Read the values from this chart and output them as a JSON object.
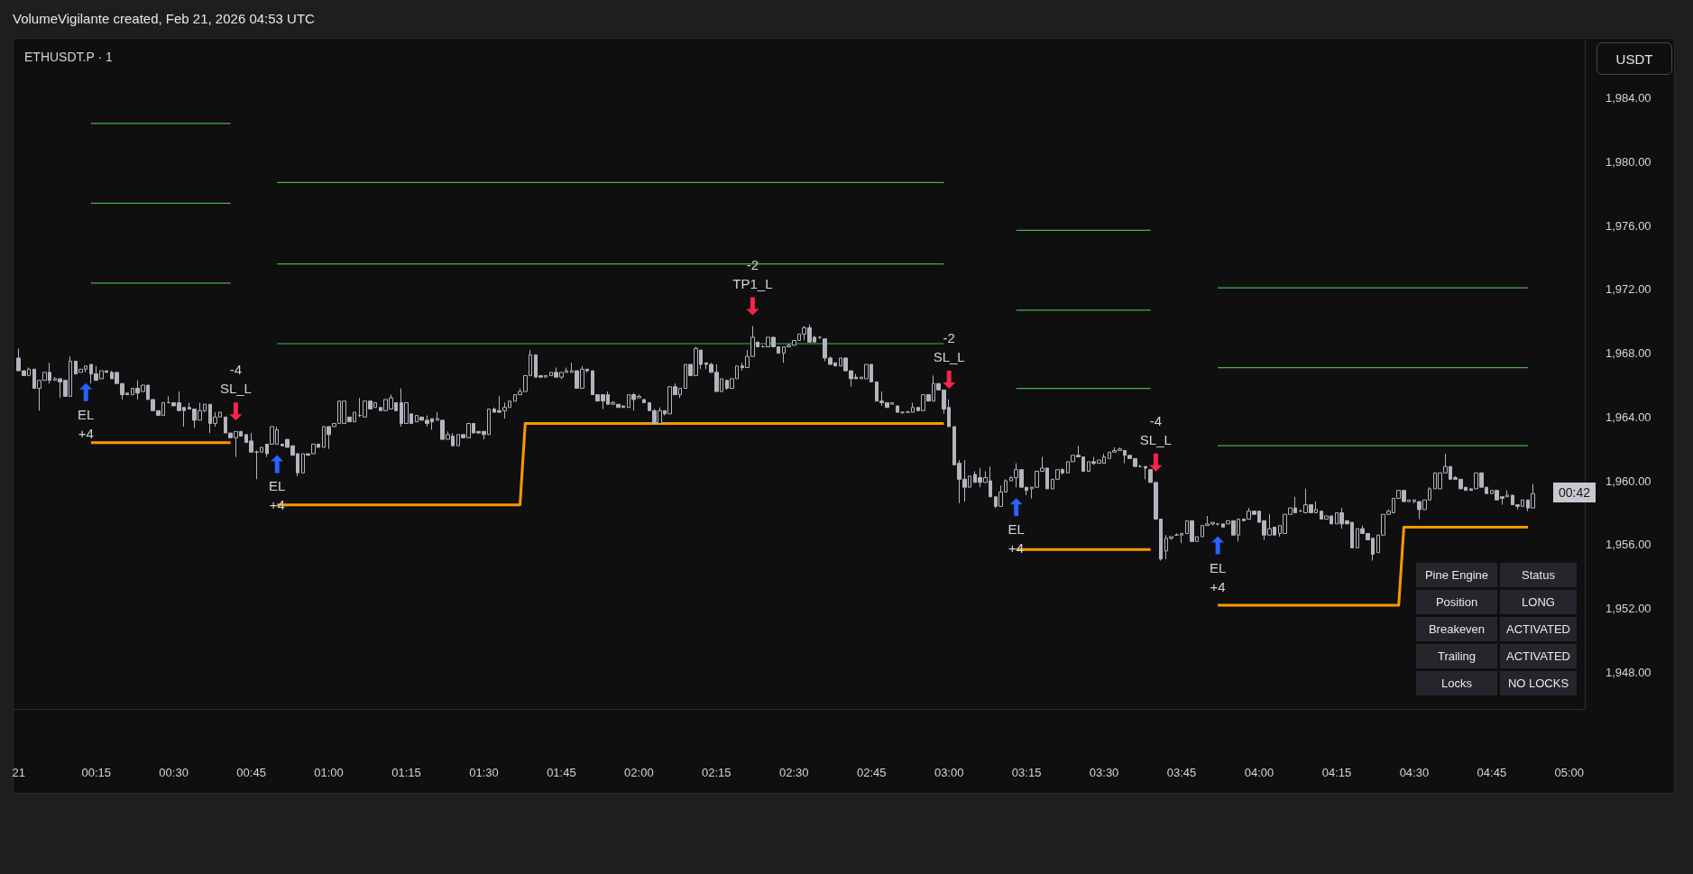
{
  "chart_data": {
    "type": "candlestick",
    "title": "VolumeVigilante created, Feb 21, 2026 04:53 UTC",
    "subtitle": "ETHUSDT.P · 1",
    "ylabel": "USDT",
    "color": "#b2b5be",
    "x": [
      "2026-02-21T00:00",
      "2026-02-21T00:01",
      "2026-02-21T00:02",
      "2026-02-21T00:03",
      "2026-02-21T00:04",
      "2026-02-21T00:05",
      "2026-02-21T00:06",
      "2026-02-21T00:07",
      "2026-02-21T00:08",
      "2026-02-21T00:09",
      "2026-02-21T00:10",
      "2026-02-21T00:11",
      "2026-02-21T00:12",
      "2026-02-21T00:13",
      "2026-02-21T00:14",
      "2026-02-21T00:15",
      "2026-02-21T00:16",
      "2026-02-21T00:17",
      "2026-02-21T00:18",
      "2026-02-21T00:19",
      "2026-02-21T00:20",
      "2026-02-21T00:21",
      "2026-02-21T00:22",
      "2026-02-21T00:23",
      "2026-02-21T00:24",
      "2026-02-21T00:25",
      "2026-02-21T00:26",
      "2026-02-21T00:27",
      "2026-02-21T00:28",
      "2026-02-21T00:29",
      "2026-02-21T00:30",
      "2026-02-21T00:31",
      "2026-02-21T00:32",
      "2026-02-21T00:33",
      "2026-02-21T00:34",
      "2026-02-21T00:35",
      "2026-02-21T00:36",
      "2026-02-21T00:37",
      "2026-02-21T00:38",
      "2026-02-21T00:39",
      "2026-02-21T00:40",
      "2026-02-21T00:41",
      "2026-02-21T00:42",
      "2026-02-21T00:43",
      "2026-02-21T00:44",
      "2026-02-21T00:45",
      "2026-02-21T00:46",
      "2026-02-21T00:47",
      "2026-02-21T00:48",
      "2026-02-21T00:49",
      "2026-02-21T00:50",
      "2026-02-21T00:51",
      "2026-02-21T00:52",
      "2026-02-21T00:53",
      "2026-02-21T00:54",
      "2026-02-21T00:55",
      "2026-02-21T00:56",
      "2026-02-21T00:57",
      "2026-02-21T00:58",
      "2026-02-21T00:59",
      "2026-02-21T01:00",
      "2026-02-21T01:01",
      "2026-02-21T01:02",
      "2026-02-21T01:03",
      "2026-02-21T01:04",
      "2026-02-21T01:05",
      "2026-02-21T01:06",
      "2026-02-21T01:07",
      "2026-02-21T01:08",
      "2026-02-21T01:09",
      "2026-02-21T01:10",
      "2026-02-21T01:11",
      "2026-02-21T01:12",
      "2026-02-21T01:13",
      "2026-02-21T01:14",
      "2026-02-21T01:15",
      "2026-02-21T01:16",
      "2026-02-21T01:17",
      "2026-02-21T01:18",
      "2026-02-21T01:19",
      "2026-02-21T01:20",
      "2026-02-21T01:21",
      "2026-02-21T01:22",
      "2026-02-21T01:23",
      "2026-02-21T01:24",
      "2026-02-21T01:25",
      "2026-02-21T01:26",
      "2026-02-21T01:27",
      "2026-02-21T01:28",
      "2026-02-21T01:29",
      "2026-02-21T01:30",
      "2026-02-21T01:31",
      "2026-02-21T01:32",
      "2026-02-21T01:33",
      "2026-02-21T01:34",
      "2026-02-21T01:35",
      "2026-02-21T01:36",
      "2026-02-21T01:37",
      "2026-02-21T01:38",
      "2026-02-21T01:39",
      "2026-02-21T01:40",
      "2026-02-21T01:41",
      "2026-02-21T01:42",
      "2026-02-21T01:43",
      "2026-02-21T01:44",
      "2026-02-21T01:45",
      "2026-02-21T01:46",
      "2026-02-21T01:47",
      "2026-02-21T01:48",
      "2026-02-21T01:49",
      "2026-02-21T01:50",
      "2026-02-21T01:51",
      "2026-02-21T01:52",
      "2026-02-21T01:53",
      "2026-02-21T01:54",
      "2026-02-21T01:55",
      "2026-02-21T01:56",
      "2026-02-21T01:57",
      "2026-02-21T01:58",
      "2026-02-21T01:59",
      "2026-02-21T02:00",
      "2026-02-21T02:01",
      "2026-02-21T02:02",
      "2026-02-21T02:03",
      "2026-02-21T02:04",
      "2026-02-21T02:05",
      "2026-02-21T02:06",
      "2026-02-21T02:07",
      "2026-02-21T02:08",
      "2026-02-21T02:09",
      "2026-02-21T02:10",
      "2026-02-21T02:11",
      "2026-02-21T02:12",
      "2026-02-21T02:13",
      "2026-02-21T02:14",
      "2026-02-21T02:15",
      "2026-02-21T02:16",
      "2026-02-21T02:17",
      "2026-02-21T02:18",
      "2026-02-21T02:19",
      "2026-02-21T02:20",
      "2026-02-21T02:21",
      "2026-02-21T02:22",
      "2026-02-21T02:23",
      "2026-02-21T02:24",
      "2026-02-21T02:25",
      "2026-02-21T02:26",
      "2026-02-21T02:27",
      "2026-02-21T02:28",
      "2026-02-21T02:29",
      "2026-02-21T02:30",
      "2026-02-21T02:31",
      "2026-02-21T02:32",
      "2026-02-21T02:33",
      "2026-02-21T02:34",
      "2026-02-21T02:35",
      "2026-02-21T02:36",
      "2026-02-21T02:37",
      "2026-02-21T02:38",
      "2026-02-21T02:39",
      "2026-02-21T02:40",
      "2026-02-21T02:41",
      "2026-02-21T02:42",
      "2026-02-21T02:43",
      "2026-02-21T02:44",
      "2026-02-21T02:45",
      "2026-02-21T02:46",
      "2026-02-21T02:47",
      "2026-02-21T02:48",
      "2026-02-21T02:49",
      "2026-02-21T02:50",
      "2026-02-21T02:51",
      "2026-02-21T02:52",
      "2026-02-21T02:53",
      "2026-02-21T02:54",
      "2026-02-21T02:55",
      "2026-02-21T02:56",
      "2026-02-21T02:57",
      "2026-02-21T02:58",
      "2026-02-21T02:59",
      "2026-02-21T03:00",
      "2026-02-21T03:01",
      "2026-02-21T03:02",
      "2026-02-21T03:03",
      "2026-02-21T03:04",
      "2026-02-21T03:05",
      "2026-02-21T03:06",
      "2026-02-21T03:07",
      "2026-02-21T03:08",
      "2026-02-21T03:09",
      "2026-02-21T03:10",
      "2026-02-21T03:11",
      "2026-02-21T03:12",
      "2026-02-21T03:13",
      "2026-02-21T03:14",
      "2026-02-21T03:15",
      "2026-02-21T03:16",
      "2026-02-21T03:17",
      "2026-02-21T03:18",
      "2026-02-21T03:19",
      "2026-02-21T03:20",
      "2026-02-21T03:21",
      "2026-02-21T03:22",
      "2026-02-21T03:23",
      "2026-02-21T03:24",
      "2026-02-21T03:25",
      "2026-02-21T03:26",
      "2026-02-21T03:27",
      "2026-02-21T03:28",
      "2026-02-21T03:29",
      "2026-02-21T03:30",
      "2026-02-21T03:31",
      "2026-02-21T03:32",
      "2026-02-21T03:33",
      "2026-02-21T03:34",
      "2026-02-21T03:35",
      "2026-02-21T03:36",
      "2026-02-21T03:37",
      "2026-02-21T03:38",
      "2026-02-21T03:39",
      "2026-02-21T03:40",
      "2026-02-21T03:41",
      "2026-02-21T03:42",
      "2026-02-21T03:43",
      "2026-02-21T03:44",
      "2026-02-21T03:45",
      "2026-02-21T03:46",
      "2026-02-21T03:47",
      "2026-02-21T03:48",
      "2026-02-21T03:49",
      "2026-02-21T03:50",
      "2026-02-21T03:51",
      "2026-02-21T03:52",
      "2026-02-21T03:53",
      "2026-02-21T03:54",
      "2026-02-21T03:55",
      "2026-02-21T03:56",
      "2026-02-21T03:57",
      "2026-02-21T03:58",
      "2026-02-21T03:59",
      "2026-02-21T04:00",
      "2026-02-21T04:01",
      "2026-02-21T04:02",
      "2026-02-21T04:03",
      "2026-02-21T04:04",
      "2026-02-21T04:05",
      "2026-02-21T04:06",
      "2026-02-21T04:07",
      "2026-02-21T04:08",
      "2026-02-21T04:09",
      "2026-02-21T04:10",
      "2026-02-21T04:11",
      "2026-02-21T04:12",
      "2026-02-21T04:13",
      "2026-02-21T04:14",
      "2026-02-21T04:15",
      "2026-02-21T04:16",
      "2026-02-21T04:17",
      "2026-02-21T04:18",
      "2026-02-21T04:19",
      "2026-02-21T04:20",
      "2026-02-21T04:21",
      "2026-02-21T04:22",
      "2026-02-21T04:23",
      "2026-02-21T04:24",
      "2026-02-21T04:25",
      "2026-02-21T04:26",
      "2026-02-21T04:27",
      "2026-02-21T04:28",
      "2026-02-21T04:29",
      "2026-02-21T04:30",
      "2026-02-21T04:31",
      "2026-02-21T04:32",
      "2026-02-21T04:33",
      "2026-02-21T04:34",
      "2026-02-21T04:35",
      "2026-02-21T04:36",
      "2026-02-21T04:37",
      "2026-02-21T04:38",
      "2026-02-21T04:39",
      "2026-02-21T04:40",
      "2026-02-21T04:41",
      "2026-02-21T04:42",
      "2026-02-21T04:43",
      "2026-02-21T04:44",
      "2026-02-21T04:45",
      "2026-02-21T04:46",
      "2026-02-21T04:47",
      "2026-02-21T04:48",
      "2026-02-21T04:49",
      "2026-02-21T04:50",
      "2026-02-21T04:51",
      "2026-02-21T04:52",
      "2026-02-21T04:53"
    ],
    "ohlc": [
      [
        1967.7,
        1968.3,
        1966.9,
        1966.9
      ],
      [
        1966.9,
        1966.9,
        1966.6,
        1966.6
      ],
      [
        1966.6,
        1967.1,
        1966.6,
        1967.0
      ],
      [
        1967.0,
        1967.0,
        1965.8,
        1965.8
      ],
      [
        1965.8,
        1966.3,
        1964.4,
        1966.3
      ],
      [
        1966.3,
        1966.8,
        1966.3,
        1966.8
      ],
      [
        1966.8,
        1967.4,
        1966.1,
        1966.3
      ],
      [
        1966.3,
        1966.5,
        1966.3,
        1966.4
      ],
      [
        1966.4,
        1966.4,
        1965.2,
        1966.2
      ],
      [
        1966.3,
        1966.3,
        1965.3,
        1965.3
      ],
      [
        1965.3,
        1967.8,
        1965.3,
        1967.5
      ],
      [
        1967.5,
        1967.5,
        1966.7,
        1966.7
      ],
      [
        1966.8,
        1967.0,
        1966.8,
        1967.0
      ],
      [
        1967.0,
        1967.2,
        1966.8,
        1967.2
      ],
      [
        1967.3,
        1967.3,
        1966.1,
        1966.7
      ],
      [
        1966.7,
        1967.2,
        1966.3,
        1966.3
      ],
      [
        1966.4,
        1966.9,
        1966.4,
        1966.9
      ],
      [
        1966.9,
        1966.9,
        1966.8,
        1966.8
      ],
      [
        1966.8,
        1966.9,
        1966.4,
        1966.4
      ],
      [
        1966.8,
        1966.8,
        1966.1,
        1966.1
      ],
      [
        1966.1,
        1966.1,
        1965.1,
        1965.4
      ],
      [
        1965.5,
        1965.5,
        1965.4,
        1965.4
      ],
      [
        1965.4,
        1965.8,
        1965.4,
        1965.8
      ],
      [
        1965.8,
        1966.3,
        1965.1,
        1965.5
      ],
      [
        1965.6,
        1966.0,
        1965.6,
        1966.0
      ],
      [
        1966.0,
        1966.0,
        1965.1,
        1965.1
      ],
      [
        1965.1,
        1965.1,
        1964.4,
        1964.4
      ],
      [
        1964.4,
        1964.4,
        1964.1,
        1964.1
      ],
      [
        1964.1,
        1964.9,
        1964.1,
        1964.9
      ],
      [
        1964.9,
        1965.3,
        1964.9,
        1964.9
      ],
      [
        1964.9,
        1964.9,
        1964.7,
        1964.7
      ],
      [
        1964.9,
        1965.6,
        1964.4,
        1964.4
      ],
      [
        1964.6,
        1964.6,
        1963.4,
        1964.4
      ],
      [
        1964.6,
        1964.9,
        1964.5,
        1964.5
      ],
      [
        1964.5,
        1964.5,
        1963.3,
        1963.8
      ],
      [
        1963.8,
        1964.9,
        1963.8,
        1964.4
      ],
      [
        1964.4,
        1964.8,
        1964.3,
        1964.8
      ],
      [
        1964.8,
        1964.8,
        1963.0,
        1963.6
      ],
      [
        1963.6,
        1964.3,
        1963.4,
        1964.0
      ],
      [
        1964.0,
        1964.3,
        1964.0,
        1964.3
      ],
      [
        1964.0,
        1964.0,
        1963.0,
        1963.0
      ],
      [
        1963.0,
        1963.0,
        1962.7,
        1962.7
      ],
      [
        1962.7,
        1963.1,
        1961.5,
        1963.1
      ],
      [
        1963.1,
        1963.1,
        1962.8,
        1962.8
      ],
      [
        1962.9,
        1962.9,
        1962.4,
        1962.4
      ],
      [
        1962.5,
        1963.0,
        1961.8,
        1961.8
      ],
      [
        1961.8,
        1961.9,
        1960.1,
        1961.8
      ],
      [
        1961.8,
        1962.1,
        1961.8,
        1962.1
      ],
      [
        1962.3,
        1962.3,
        1961.5,
        1961.7
      ],
      [
        1962.3,
        1963.4,
        1962.3,
        1963.4
      ],
      [
        1962.3,
        1963.4,
        1962.3,
        1963.2
      ],
      [
        1962.3,
        1962.3,
        1962.2,
        1962.2
      ],
      [
        1962.6,
        1962.6,
        1962.1,
        1962.1
      ],
      [
        1962.2,
        1962.2,
        1961.6,
        1961.6
      ],
      [
        1961.7,
        1961.7,
        1960.3,
        1960.5
      ],
      [
        1960.5,
        1961.7,
        1960.5,
        1961.7
      ],
      [
        1961.7,
        1961.7,
        1961.6,
        1961.6
      ],
      [
        1961.7,
        1962.3,
        1961.7,
        1962.3
      ],
      [
        1962.3,
        1962.3,
        1962.1,
        1962.1
      ],
      [
        1962.1,
        1963.4,
        1962.1,
        1963.4
      ],
      [
        1963.4,
        1963.4,
        1962.0,
        1962.9
      ],
      [
        1963.4,
        1963.6,
        1963.4,
        1963.6
      ],
      [
        1963.6,
        1965.0,
        1963.6,
        1965.0
      ],
      [
        1963.6,
        1965.0,
        1963.6,
        1965.0
      ],
      [
        1964.0,
        1964.0,
        1963.7,
        1963.7
      ],
      [
        1963.7,
        1964.3,
        1963.7,
        1964.3
      ],
      [
        1964.1,
        1965.2,
        1964.0,
        1964.1
      ],
      [
        1964.0,
        1965.0,
        1964.0,
        1965.0
      ],
      [
        1965.0,
        1965.0,
        1964.5,
        1964.5
      ],
      [
        1964.6,
        1964.9,
        1964.6,
        1964.9
      ],
      [
        1964.6,
        1964.6,
        1964.4,
        1964.4
      ],
      [
        1964.4,
        1965.1,
        1964.4,
        1965.1
      ],
      [
        1964.5,
        1965.4,
        1964.5,
        1965.2
      ],
      [
        1964.9,
        1964.9,
        1964.4,
        1964.4
      ],
      [
        1964.9,
        1965.8,
        1963.4,
        1963.6
      ],
      [
        1963.6,
        1964.9,
        1963.6,
        1964.9
      ],
      [
        1964.2,
        1964.2,
        1963.6,
        1963.6
      ],
      [
        1963.7,
        1964.1,
        1963.7,
        1964.1
      ],
      [
        1964.0,
        1964.0,
        1963.8,
        1963.8
      ],
      [
        1963.8,
        1964.1,
        1963.4,
        1963.6
      ],
      [
        1963.9,
        1963.9,
        1963.2,
        1963.7
      ],
      [
        1963.8,
        1964.3,
        1963.8,
        1963.9
      ],
      [
        1963.8,
        1963.8,
        1962.6,
        1962.6
      ],
      [
        1962.6,
        1963.1,
        1962.6,
        1962.9
      ],
      [
        1962.8,
        1963.0,
        1962.2,
        1962.2
      ],
      [
        1962.2,
        1962.9,
        1962.2,
        1962.9
      ],
      [
        1962.9,
        1962.9,
        1962.7,
        1962.7
      ],
      [
        1962.7,
        1963.6,
        1962.7,
        1963.6
      ],
      [
        1963.6,
        1963.6,
        1963.0,
        1963.0
      ],
      [
        1963.1,
        1963.1,
        1963.0,
        1963.0
      ],
      [
        1963.1,
        1963.1,
        1962.6,
        1962.9
      ],
      [
        1962.9,
        1964.5,
        1962.9,
        1964.5
      ],
      [
        1964.5,
        1964.6,
        1964.3,
        1964.3
      ],
      [
        1964.4,
        1965.3,
        1964.3,
        1964.3
      ],
      [
        1964.4,
        1964.9,
        1963.9,
        1964.6
      ],
      [
        1964.6,
        1965.0,
        1964.6,
        1965.0
      ],
      [
        1965.0,
        1965.4,
        1965.0,
        1965.4
      ],
      [
        1965.4,
        1965.8,
        1965.4,
        1965.6
      ],
      [
        1965.6,
        1966.6,
        1965.6,
        1966.6
      ],
      [
        1966.6,
        1968.2,
        1966.6,
        1967.9
      ],
      [
        1967.9,
        1967.9,
        1966.5,
        1966.5
      ],
      [
        1966.6,
        1966.6,
        1966.5,
        1966.5
      ],
      [
        1966.5,
        1966.6,
        1966.5,
        1966.6
      ],
      [
        1966.6,
        1966.8,
        1966.6,
        1966.8
      ],
      [
        1966.8,
        1967.1,
        1966.5,
        1966.5
      ],
      [
        1966.5,
        1966.8,
        1966.4,
        1966.8
      ],
      [
        1966.8,
        1967.1,
        1966.8,
        1966.9
      ],
      [
        1966.8,
        1967.4,
        1966.8,
        1966.9
      ],
      [
        1966.9,
        1966.9,
        1965.8,
        1965.8
      ],
      [
        1965.8,
        1967.2,
        1965.8,
        1967.0
      ],
      [
        1967.0,
        1967.0,
        1966.8,
        1966.9
      ],
      [
        1966.9,
        1966.9,
        1965.4,
        1965.4
      ],
      [
        1965.4,
        1965.4,
        1965.0,
        1965.0
      ],
      [
        1965.4,
        1965.4,
        1964.5,
        1965.0
      ],
      [
        1965.4,
        1965.6,
        1964.8,
        1964.8
      ],
      [
        1964.8,
        1965.0,
        1964.8,
        1964.9
      ],
      [
        1964.8,
        1964.8,
        1964.6,
        1964.6
      ],
      [
        1964.7,
        1964.7,
        1964.6,
        1964.6
      ],
      [
        1964.6,
        1965.4,
        1964.6,
        1965.4
      ],
      [
        1965.4,
        1965.5,
        1964.4,
        1965.1
      ],
      [
        1965.2,
        1965.4,
        1965.2,
        1965.3
      ],
      [
        1965.1,
        1965.1,
        1964.9,
        1964.9
      ],
      [
        1964.9,
        1964.9,
        1964.4,
        1964.4
      ],
      [
        1964.4,
        1964.5,
        1963.6,
        1963.6
      ],
      [
        1963.6,
        1964.6,
        1963.6,
        1964.4
      ],
      [
        1964.4,
        1964.4,
        1964.1,
        1964.2
      ],
      [
        1964.2,
        1965.9,
        1964.2,
        1965.9
      ],
      [
        1965.9,
        1966.1,
        1965.4,
        1965.4
      ],
      [
        1965.4,
        1965.8,
        1965.2,
        1965.8
      ],
      [
        1965.8,
        1967.3,
        1965.8,
        1967.3
      ],
      [
        1967.3,
        1967.3,
        1966.6,
        1966.6
      ],
      [
        1966.6,
        1968.4,
        1966.6,
        1968.3
      ],
      [
        1968.2,
        1968.2,
        1967.0,
        1967.3
      ],
      [
        1967.4,
        1967.4,
        1967.0,
        1967.3
      ],
      [
        1967.3,
        1967.4,
        1966.8,
        1966.8
      ],
      [
        1966.8,
        1967.3,
        1965.6,
        1965.6
      ],
      [
        1965.6,
        1966.4,
        1965.6,
        1966.4
      ],
      [
        1966.3,
        1966.3,
        1965.7,
        1965.8
      ],
      [
        1965.8,
        1966.4,
        1965.8,
        1966.4
      ],
      [
        1966.4,
        1967.2,
        1966.4,
        1967.2
      ],
      [
        1967.2,
        1967.4,
        1966.9,
        1967.1
      ],
      [
        1967.1,
        1968.2,
        1967.1,
        1967.8
      ],
      [
        1967.8,
        1969.7,
        1967.8,
        1969.0
      ],
      [
        1968.7,
        1968.7,
        1968.4,
        1968.4
      ],
      [
        1968.4,
        1968.5,
        1968.4,
        1968.4
      ],
      [
        1968.4,
        1969.0,
        1968.4,
        1969.0
      ],
      [
        1969.0,
        1969.0,
        1968.4,
        1968.4
      ],
      [
        1968.4,
        1968.4,
        1968.0,
        1968.0
      ],
      [
        1968.0,
        1968.4,
        1967.4,
        1968.4
      ],
      [
        1968.4,
        1968.6,
        1968.4,
        1968.5
      ],
      [
        1968.5,
        1968.8,
        1968.5,
        1968.8
      ],
      [
        1968.8,
        1969.2,
        1968.8,
        1969.2
      ],
      [
        1969.2,
        1969.7,
        1968.8,
        1969.6
      ],
      [
        1969.6,
        1969.8,
        1968.7,
        1968.7
      ],
      [
        1969.0,
        1969.1,
        1968.7,
        1968.7
      ],
      [
        1969.0,
        1969.0,
        1968.9,
        1969.0
      ],
      [
        1968.9,
        1968.9,
        1967.5,
        1967.7
      ],
      [
        1967.7,
        1967.8,
        1967.3,
        1967.3
      ],
      [
        1967.4,
        1967.4,
        1967.2,
        1967.2
      ],
      [
        1967.2,
        1967.7,
        1967.2,
        1967.7
      ],
      [
        1967.7,
        1967.7,
        1966.9,
        1966.9
      ],
      [
        1966.9,
        1966.9,
        1965.9,
        1966.4
      ],
      [
        1966.5,
        1966.7,
        1966.4,
        1966.4
      ],
      [
        1966.4,
        1966.5,
        1966.4,
        1966.5
      ],
      [
        1966.4,
        1967.3,
        1966.4,
        1967.3
      ],
      [
        1967.3,
        1967.3,
        1966.2,
        1966.2
      ],
      [
        1966.2,
        1966.2,
        1965.0,
        1965.0
      ],
      [
        1965.0,
        1965.6,
        1964.7,
        1964.9
      ],
      [
        1964.9,
        1964.9,
        1964.6,
        1964.6
      ],
      [
        1964.8,
        1964.9,
        1964.8,
        1964.9
      ],
      [
        1964.7,
        1964.7,
        1964.3,
        1964.3
      ],
      [
        1964.3,
        1964.3,
        1964.2,
        1964.3
      ],
      [
        1964.3,
        1964.4,
        1964.3,
        1964.3
      ],
      [
        1964.3,
        1964.9,
        1964.3,
        1964.6
      ],
      [
        1964.6,
        1964.6,
        1964.4,
        1964.4
      ],
      [
        1964.4,
        1965.4,
        1964.4,
        1965.4
      ],
      [
        1965.4,
        1965.4,
        1965.0,
        1965.0
      ],
      [
        1965.0,
        1966.6,
        1965.0,
        1966.1
      ],
      [
        1966.1,
        1966.1,
        1965.7,
        1965.7
      ],
      [
        1965.7,
        1965.7,
        1964.2,
        1964.5
      ],
      [
        1964.6,
        1965.1,
        1963.4,
        1963.4
      ],
      [
        1963.4,
        1963.4,
        1961.0,
        1961.0
      ],
      [
        1961.1,
        1961.3,
        1958.6,
        1960.1
      ],
      [
        1960.1,
        1961.3,
        1958.7,
        1959.6
      ],
      [
        1959.6,
        1960.3,
        1959.6,
        1960.3
      ],
      [
        1960.4,
        1960.6,
        1959.9,
        1959.9
      ],
      [
        1960.2,
        1960.8,
        1959.6,
        1959.9
      ],
      [
        1959.9,
        1960.6,
        1959.9,
        1960.2
      ],
      [
        1960.0,
        1960.9,
        1959.0,
        1959.0
      ],
      [
        1959.0,
        1959.0,
        1958.3,
        1958.4
      ],
      [
        1958.4,
        1959.7,
        1958.4,
        1959.3
      ],
      [
        1959.3,
        1960.1,
        1959.3,
        1960.0
      ],
      [
        1960.0,
        1960.3,
        1960.0,
        1960.2
      ],
      [
        1960.2,
        1961.1,
        1959.6,
        1960.7
      ],
      [
        1960.7,
        1960.7,
        1959.6,
        1959.6
      ],
      [
        1959.6,
        1959.6,
        1959.1,
        1959.4
      ],
      [
        1959.5,
        1959.6,
        1958.9,
        1959.6
      ],
      [
        1959.6,
        1960.6,
        1959.6,
        1960.6
      ],
      [
        1960.6,
        1961.5,
        1960.6,
        1960.8
      ],
      [
        1960.8,
        1960.8,
        1959.5,
        1959.5
      ],
      [
        1959.5,
        1960.1,
        1959.5,
        1960.1
      ],
      [
        1960.1,
        1960.7,
        1960.1,
        1960.7
      ],
      [
        1960.7,
        1960.8,
        1960.4,
        1960.5
      ],
      [
        1960.5,
        1961.2,
        1960.5,
        1961.2
      ],
      [
        1961.2,
        1961.6,
        1961.2,
        1961.6
      ],
      [
        1961.6,
        1962.2,
        1961.5,
        1961.5
      ],
      [
        1961.5,
        1961.5,
        1960.6,
        1960.6
      ],
      [
        1960.6,
        1961.2,
        1960.6,
        1961.2
      ],
      [
        1961.2,
        1961.5,
        1961.0,
        1961.1
      ],
      [
        1961.1,
        1961.3,
        1961.1,
        1961.3
      ],
      [
        1961.1,
        1961.7,
        1961.1,
        1961.5
      ],
      [
        1961.4,
        1961.8,
        1961.4,
        1961.8
      ],
      [
        1961.8,
        1962.1,
        1961.8,
        1961.9
      ],
      [
        1961.9,
        1962.1,
        1961.9,
        1962.0
      ],
      [
        1961.9,
        1961.9,
        1961.1,
        1961.6
      ],
      [
        1961.6,
        1961.6,
        1961.4,
        1961.4
      ],
      [
        1961.4,
        1961.4,
        1960.9,
        1960.9
      ],
      [
        1960.9,
        1961.0,
        1960.9,
        1960.9
      ],
      [
        1960.9,
        1960.9,
        1960.1,
        1960.8
      ],
      [
        1960.7,
        1960.7,
        1959.9,
        1959.9
      ],
      [
        1959.9,
        1959.9,
        1957.6,
        1957.6
      ],
      [
        1957.6,
        1957.6,
        1955.0,
        1955.1
      ],
      [
        1955.6,
        1956.6,
        1955.1,
        1956.4
      ],
      [
        1956.4,
        1956.5,
        1956.3,
        1956.5
      ],
      [
        1956.6,
        1956.7,
        1956.6,
        1956.6
      ],
      [
        1956.6,
        1956.7,
        1956.1,
        1956.7
      ],
      [
        1956.7,
        1957.5,
        1956.7,
        1957.5
      ],
      [
        1957.5,
        1957.5,
        1956.2,
        1956.2
      ],
      [
        1956.2,
        1956.5,
        1956.2,
        1956.5
      ],
      [
        1956.5,
        1957.2,
        1956.5,
        1957.2
      ],
      [
        1957.2,
        1957.8,
        1957.2,
        1957.3
      ],
      [
        1957.3,
        1957.4,
        1957.2,
        1957.4
      ],
      [
        1957.3,
        1957.3,
        1957.2,
        1957.3
      ],
      [
        1957.3,
        1957.3,
        1957.1,
        1957.1
      ],
      [
        1957.3,
        1957.5,
        1957.3,
        1957.5
      ],
      [
        1957.5,
        1957.5,
        1956.6,
        1956.6
      ],
      [
        1956.6,
        1957.6,
        1956.2,
        1957.6
      ],
      [
        1957.6,
        1957.6,
        1957.5,
        1957.5
      ],
      [
        1957.6,
        1958.3,
        1957.6,
        1958.1
      ],
      [
        1958.1,
        1958.1,
        1957.9,
        1957.9
      ],
      [
        1958.1,
        1958.1,
        1957.4,
        1957.4
      ],
      [
        1957.5,
        1957.5,
        1956.3,
        1956.6
      ],
      [
        1956.6,
        1957.9,
        1956.6,
        1957.0
      ],
      [
        1957.1,
        1957.1,
        1956.6,
        1956.6
      ],
      [
        1956.7,
        1957.2,
        1956.5,
        1957.2
      ],
      [
        1956.7,
        1957.9,
        1956.7,
        1957.9
      ],
      [
        1957.9,
        1958.3,
        1957.9,
        1958.3
      ],
      [
        1958.3,
        1959.0,
        1958.0,
        1958.0
      ],
      [
        1958.1,
        1958.2,
        1958.1,
        1958.1
      ],
      [
        1958.0,
        1959.5,
        1958.0,
        1958.5
      ],
      [
        1958.5,
        1958.5,
        1958.0,
        1958.0
      ],
      [
        1958.0,
        1958.7,
        1958.0,
        1958.2
      ],
      [
        1958.1,
        1958.1,
        1957.6,
        1957.6
      ],
      [
        1957.6,
        1957.8,
        1957.6,
        1957.8
      ],
      [
        1957.8,
        1957.8,
        1957.3,
        1957.3
      ],
      [
        1957.3,
        1958.0,
        1957.3,
        1958.0
      ],
      [
        1958.0,
        1958.3,
        1957.0,
        1957.3
      ],
      [
        1957.5,
        1957.5,
        1957.3,
        1957.3
      ],
      [
        1957.4,
        1957.4,
        1955.8,
        1955.8
      ],
      [
        1955.8,
        1957.0,
        1955.8,
        1957.0
      ],
      [
        1957.0,
        1957.2,
        1956.7,
        1956.7
      ],
      [
        1956.7,
        1956.7,
        1956.3,
        1956.3
      ],
      [
        1956.4,
        1956.4,
        1955.0,
        1955.4
      ],
      [
        1955.5,
        1956.6,
        1955.5,
        1956.6
      ],
      [
        1956.6,
        1957.9,
        1956.6,
        1957.9
      ],
      [
        1957.9,
        1958.2,
        1957.9,
        1958.1
      ],
      [
        1958.0,
        1958.9,
        1958.0,
        1958.9
      ],
      [
        1958.9,
        1959.4,
        1958.9,
        1959.4
      ],
      [
        1959.4,
        1959.4,
        1958.7,
        1958.7
      ],
      [
        1958.7,
        1958.8,
        1958.7,
        1958.8
      ],
      [
        1958.7,
        1958.8,
        1958.6,
        1958.8
      ],
      [
        1958.7,
        1958.7,
        1957.6,
        1958.2
      ],
      [
        1958.2,
        1958.8,
        1958.2,
        1958.8
      ],
      [
        1958.8,
        1959.6,
        1958.8,
        1959.5
      ],
      [
        1959.5,
        1960.5,
        1959.5,
        1960.5
      ],
      [
        1959.5,
        1960.5,
        1959.5,
        1960.5
      ],
      [
        1960.5,
        1961.7,
        1960.5,
        1960.9
      ],
      [
        1960.9,
        1960.9,
        1960.1,
        1960.1
      ],
      [
        1960.2,
        1960.3,
        1960.1,
        1960.1
      ],
      [
        1960.1,
        1960.1,
        1959.5,
        1959.5
      ],
      [
        1959.6,
        1959.6,
        1959.4,
        1959.4
      ],
      [
        1959.5,
        1959.5,
        1959.4,
        1959.4
      ],
      [
        1959.5,
        1960.5,
        1959.5,
        1960.5
      ],
      [
        1960.5,
        1960.5,
        1959.6,
        1959.6
      ],
      [
        1959.6,
        1959.6,
        1959.2,
        1959.2
      ],
      [
        1959.2,
        1959.4,
        1959.2,
        1959.4
      ],
      [
        1959.4,
        1959.4,
        1958.8,
        1958.8
      ],
      [
        1959.0,
        1959.0,
        1958.5,
        1958.9
      ],
      [
        1959.0,
        1959.4,
        1959.0,
        1959.1
      ],
      [
        1959.1,
        1959.1,
        1958.5,
        1958.5
      ],
      [
        1958.5,
        1958.5,
        1958.2,
        1958.4
      ],
      [
        1958.4,
        1958.8,
        1958.4,
        1958.8
      ],
      [
        1958.8,
        1958.8,
        1958.1,
        1958.3
      ],
      [
        1958.3,
        1959.8,
        1958.3,
        1959.2
      ]
    ],
    "series": [
      {
        "type": "line",
        "color": "#ff9800",
        "x": [
          "2026-02-21T00:14",
          "2026-02-21T00:41"
        ],
        "values": [
          1962.4,
          1962.4
        ]
      },
      {
        "type": "line",
        "color": "#ff9800",
        "x": [
          "2026-02-21T00:50",
          "2026-02-21T01:37",
          "2026-02-21T01:38",
          "2026-02-21T02:59"
        ],
        "values": [
          1958.5,
          1958.5,
          1963.6,
          1963.6
        ]
      },
      {
        "type": "line",
        "color": "#ff9800",
        "x": [
          "2026-02-21T03:13",
          "2026-02-21T03:39"
        ],
        "values": [
          1955.7,
          1955.7
        ]
      },
      {
        "type": "line",
        "color": "#ff9800",
        "x": [
          "2026-02-21T03:52",
          "2026-02-21T04:27",
          "2026-02-21T04:28",
          "2026-02-21T04:52"
        ],
        "values": [
          1952.2,
          1952.2,
          1957.1,
          1957.1
        ]
      },
      {
        "type": "line",
        "color": "#4caf50",
        "x": [
          "2026-02-21T00:14",
          "2026-02-21T00:41"
        ],
        "values": [
          1982.4,
          1982.4
        ]
      },
      {
        "type": "line",
        "color": "#4caf50",
        "x": [
          "2026-02-21T00:14",
          "2026-02-21T00:41"
        ],
        "values": [
          1977.4,
          1977.4
        ]
      },
      {
        "type": "line",
        "color": "#4caf50",
        "x": [
          "2026-02-21T00:14",
          "2026-02-21T00:41"
        ],
        "values": [
          1972.4,
          1972.4
        ]
      },
      {
        "type": "line",
        "color": "#4caf50",
        "x": [
          "2026-02-21T00:50",
          "2026-02-21T02:59"
        ],
        "values": [
          1978.7,
          1978.7
        ]
      },
      {
        "type": "line",
        "color": "#4caf50",
        "x": [
          "2026-02-21T00:50",
          "2026-02-21T02:59"
        ],
        "values": [
          1973.6,
          1973.6
        ]
      },
      {
        "type": "line",
        "color": "#4caf50",
        "x": [
          "2026-02-21T00:50",
          "2026-02-21T02:59"
        ],
        "values": [
          1968.6,
          1968.6
        ]
      },
      {
        "type": "line",
        "color": "#4caf50",
        "x": [
          "2026-02-21T03:13",
          "2026-02-21T03:39"
        ],
        "values": [
          1975.7,
          1975.7
        ]
      },
      {
        "type": "line",
        "color": "#4caf50",
        "x": [
          "2026-02-21T03:13",
          "2026-02-21T03:39"
        ],
        "values": [
          1970.7,
          1970.7
        ]
      },
      {
        "type": "line",
        "color": "#4caf50",
        "x": [
          "2026-02-21T03:13",
          "2026-02-21T03:39"
        ],
        "values": [
          1965.8,
          1965.8
        ]
      },
      {
        "type": "line",
        "color": "#4caf50",
        "x": [
          "2026-02-21T03:52",
          "2026-02-21T04:52"
        ],
        "values": [
          1972.1,
          1972.1
        ]
      },
      {
        "type": "line",
        "color": "#4caf50",
        "x": [
          "2026-02-21T03:52",
          "2026-02-21T04:52"
        ],
        "values": [
          1967.1,
          1967.1
        ]
      },
      {
        "type": "line",
        "color": "#4caf50",
        "x": [
          "2026-02-21T03:52",
          "2026-02-21T04:52"
        ],
        "values": [
          1962.2,
          1962.2
        ]
      }
    ],
    "xlim": [
      "2026-02-20T23:59",
      "2026-02-21T05:03"
    ],
    "xticks": [
      {
        "value": "2026-02-21T00:00",
        "label": "21"
      },
      {
        "value": "2026-02-21T00:15",
        "label": "00:15"
      },
      {
        "value": "2026-02-21T00:30",
        "label": "00:30"
      },
      {
        "value": "2026-02-21T00:45",
        "label": "00:45"
      },
      {
        "value": "2026-02-21T01:00",
        "label": "01:00"
      },
      {
        "value": "2026-02-21T01:15",
        "label": "01:15"
      },
      {
        "value": "2026-02-21T01:30",
        "label": "01:30"
      },
      {
        "value": "2026-02-21T01:45",
        "label": "01:45"
      },
      {
        "value": "2026-02-21T02:00",
        "label": "02:00"
      },
      {
        "value": "2026-02-21T02:15",
        "label": "02:15"
      },
      {
        "value": "2026-02-21T02:30",
        "label": "02:30"
      },
      {
        "value": "2026-02-21T02:45",
        "label": "02:45"
      },
      {
        "value": "2026-02-21T03:00",
        "label": "03:00"
      },
      {
        "value": "2026-02-21T03:15",
        "label": "03:15"
      },
      {
        "value": "2026-02-21T03:30",
        "label": "03:30"
      },
      {
        "value": "2026-02-21T03:45",
        "label": "03:45"
      },
      {
        "value": "2026-02-21T04:00",
        "label": "04:00"
      },
      {
        "value": "2026-02-21T04:15",
        "label": "04:15"
      },
      {
        "value": "2026-02-21T04:30",
        "label": "04:30"
      },
      {
        "value": "2026-02-21T04:45",
        "label": "04:45"
      },
      {
        "value": "2026-02-21T05:00",
        "label": "05:00"
      }
    ],
    "ylim": [
      1945.7,
      1987.6
    ],
    "yticks": [
      {
        "value": 1948,
        "label": "1,948.00"
      },
      {
        "value": 1952,
        "label": "1,952.00"
      },
      {
        "value": 1956,
        "label": "1,956.00"
      },
      {
        "value": 1960,
        "label": "1,960.00"
      },
      {
        "value": 1964,
        "label": "1,964.00"
      },
      {
        "value": 1968,
        "label": "1,968.00"
      },
      {
        "value": 1972,
        "label": "1,972.00"
      },
      {
        "value": 1976,
        "label": "1,976.00"
      },
      {
        "value": 1980,
        "label": "1,980.00"
      },
      {
        "value": 1984,
        "label": "1,984.00"
      }
    ],
    "annotations": [
      {
        "text": "EL\n+4",
        "x": "2026-02-21T00:13",
        "y": 1966.8
      },
      {
        "text": "-4\nSL_L",
        "x": "2026-02-21T00:42",
        "y": 1963.1
      },
      {
        "text": "EL\n+4",
        "x": "2026-02-21T00:50",
        "y": 1962.3
      },
      {
        "text": "-2\nTP1_L",
        "x": "2026-02-21T02:22",
        "y": 1969.7
      },
      {
        "text": "-2\nSL_L",
        "x": "2026-02-21T03:00",
        "y": 1965.1
      },
      {
        "text": "EL\n+4",
        "x": "2026-02-21T03:13",
        "y": 1959.6
      },
      {
        "text": "-4\nSL_L",
        "x": "2026-02-21T03:40",
        "y": 1959.9
      },
      {
        "text": "EL\n+4",
        "x": "2026-02-21T03:52",
        "y": 1957.2
      },
      {
        "text": "00:42",
        "x": "2026-02-21T04:53",
        "y": 1959.2
      },
      "Pine Engine",
      "Status",
      "Position",
      "LONG",
      "Breakeven",
      "ACTIVATED",
      "Trailing",
      "ACTIVATED",
      "Locks",
      "NO LOCKS"
    ]
  }
}
